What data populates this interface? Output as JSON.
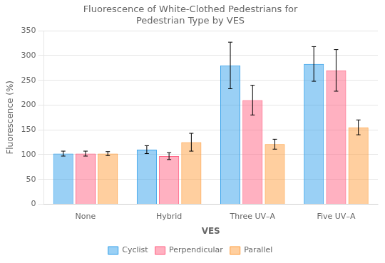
{
  "chart_data": {
    "type": "bar",
    "title": "Fluorescence of White-Clothed Pedestrians for\nPedestrian Type by VES",
    "xlabel": "VES",
    "ylabel": "Fluorescence (%)",
    "categories": [
      "None",
      "Hybrid",
      "Three UV–A",
      "Five UV–A"
    ],
    "series": [
      {
        "name": "Cyclist",
        "values": [
          102,
          110,
          280,
          283
        ],
        "errors": [
          5,
          8,
          47,
          35
        ]
      },
      {
        "name": "Perpendicular",
        "values": [
          102,
          97,
          210,
          270
        ],
        "errors": [
          5,
          7,
          30,
          42
        ]
      },
      {
        "name": "Parallel",
        "values": [
          102,
          125,
          121,
          155
        ],
        "errors": [
          4,
          18,
          10,
          15
        ]
      }
    ],
    "ylim": [
      0,
      350
    ],
    "yticks": [
      0,
      50,
      100,
      150,
      200,
      250,
      300,
      350
    ],
    "grid": true,
    "legend": "bottom"
  }
}
